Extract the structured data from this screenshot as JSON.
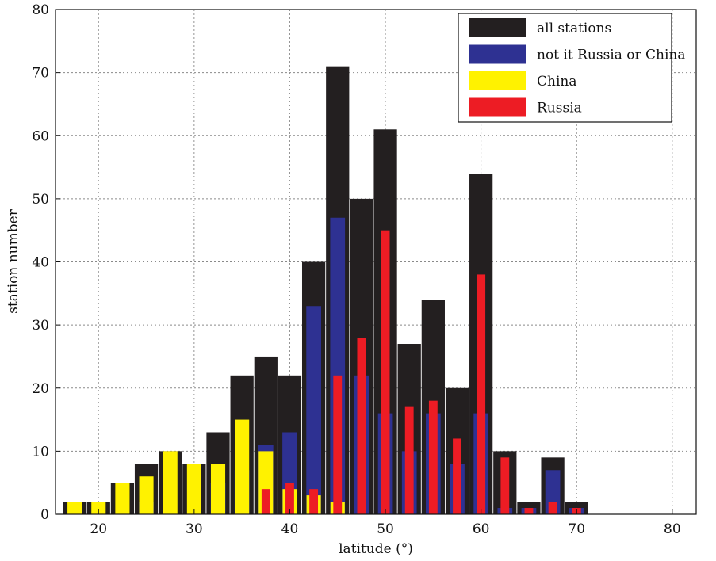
{
  "chart_data": {
    "type": "bar",
    "title": "",
    "xlabel": "latitude (°)",
    "ylabel": "station number",
    "xlim": [
      15.5,
      82.5
    ],
    "ylim": [
      0,
      80
    ],
    "xticks": [
      20,
      30,
      40,
      50,
      60,
      70,
      80
    ],
    "yticks": [
      0,
      10,
      20,
      30,
      40,
      50,
      60,
      70,
      80
    ],
    "grid": true,
    "legend_position": "top-right",
    "bin_width": 2.5,
    "x": [
      17.5,
      20,
      22.5,
      25,
      27.5,
      30,
      32.5,
      35,
      37.5,
      40,
      42.5,
      45,
      47.5,
      50,
      52.5,
      55,
      57.5,
      60,
      62.5,
      65,
      67.5,
      70,
      72.5,
      75,
      77.5,
      80
    ],
    "series": [
      {
        "name": "all stations",
        "color": "#231f20",
        "values": [
          2,
          2,
          5,
          8,
          10,
          8,
          13,
          22,
          25,
          22,
          40,
          71,
          50,
          61,
          27,
          34,
          20,
          54,
          10,
          2,
          9,
          2,
          0,
          0,
          0,
          0
        ]
      },
      {
        "name": "not it Russia or China",
        "color": "#2e3192",
        "values": [
          0,
          0,
          0,
          2,
          0,
          0,
          5,
          7,
          11,
          13,
          33,
          47,
          22,
          16,
          10,
          16,
          8,
          16,
          1,
          1,
          7,
          1,
          0,
          0,
          0,
          0
        ]
      },
      {
        "name": "China",
        "color": "#fff200",
        "values": [
          2,
          2,
          5,
          6,
          10,
          8,
          8,
          15,
          10,
          4,
          3,
          2,
          0,
          0,
          0,
          0,
          0,
          0,
          0,
          0,
          0,
          0,
          0,
          0,
          0,
          0
        ]
      },
      {
        "name": "Russia",
        "color": "#ed1c24",
        "values": [
          0,
          0,
          0,
          0,
          0,
          0,
          0,
          0,
          4,
          5,
          4,
          22,
          28,
          45,
          17,
          18,
          12,
          38,
          9,
          1,
          2,
          1,
          0,
          0,
          0,
          0
        ]
      }
    ]
  }
}
